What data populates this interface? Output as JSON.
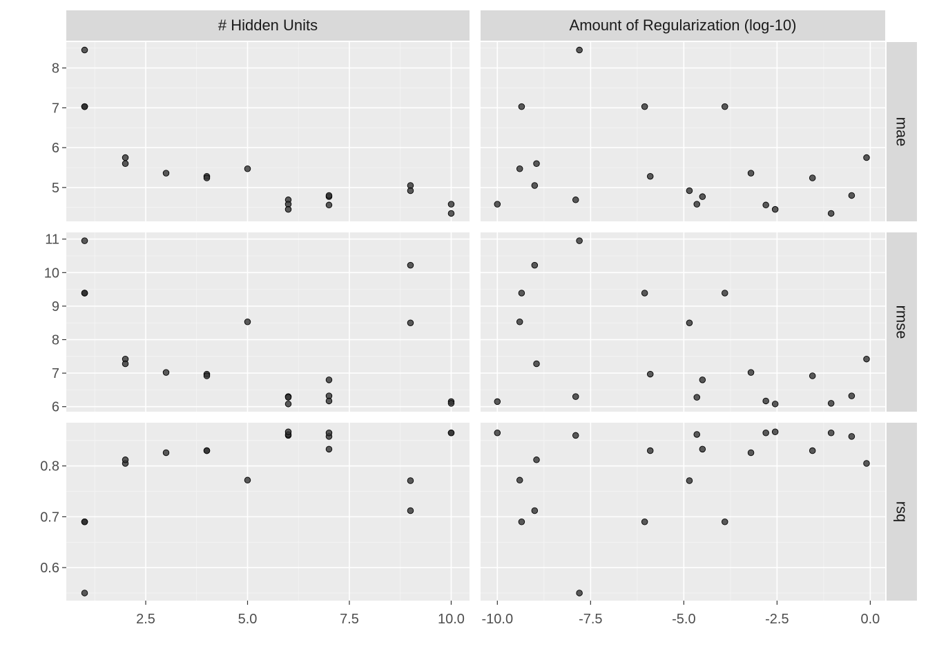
{
  "chart_data": {
    "type": "scatter",
    "layout": "facet_grid",
    "col_facets": [
      {
        "key": "hidden",
        "label": "# Hidden Units",
        "xlim": [
          0.55,
          10.45
        ],
        "xticks": [
          2.5,
          5.0,
          7.5,
          10.0
        ],
        "xtick_labels": [
          "2.5",
          "5.0",
          "7.5",
          "10.0"
        ]
      },
      {
        "key": "penalty",
        "label": "Amount of Regularization (log-10)",
        "xlim": [
          -10.45,
          0.4
        ],
        "xticks": [
          -10.0,
          -7.5,
          -5.0,
          -2.5,
          0.0
        ],
        "xtick_labels": [
          "-10.0",
          "-7.5",
          "-5.0",
          "-2.5",
          "0.0"
        ]
      }
    ],
    "row_facets": [
      {
        "key": "mae",
        "label": "mae",
        "ylim": [
          4.15,
          8.65
        ],
        "yticks": [
          5,
          6,
          7,
          8
        ],
        "ytick_labels": [
          "5",
          "6",
          "7",
          "8"
        ]
      },
      {
        "key": "rmse",
        "label": "rmse",
        "ylim": [
          5.85,
          11.2
        ],
        "yticks": [
          6,
          7,
          8,
          9,
          10,
          11
        ],
        "ytick_labels": [
          "6",
          "7",
          "8",
          "9",
          "10",
          "11"
        ]
      },
      {
        "key": "rsq",
        "label": "rsq",
        "ylim": [
          0.535,
          0.885
        ],
        "yticks": [
          0.6,
          0.7,
          0.8
        ],
        "ytick_labels": [
          "0.6",
          "0.7",
          "0.8"
        ]
      }
    ],
    "candidates": [
      {
        "hidden": 1,
        "penalty": -7.8,
        "mae": 8.45,
        "rmse": 10.95,
        "rsq": 0.55
      },
      {
        "hidden": 1,
        "penalty": -9.35,
        "mae": 7.03,
        "rmse": 9.39,
        "rsq": 0.69
      },
      {
        "hidden": 1,
        "penalty": -6.05,
        "mae": 7.03,
        "rmse": 9.39,
        "rsq": 0.69
      },
      {
        "hidden": 1,
        "penalty": -3.9,
        "mae": 7.03,
        "rmse": 9.39,
        "rsq": 0.69
      },
      {
        "hidden": 2,
        "penalty": -0.1,
        "mae": 5.75,
        "rmse": 7.42,
        "rsq": 0.805
      },
      {
        "hidden": 2,
        "penalty": -8.95,
        "mae": 5.6,
        "rmse": 7.28,
        "rsq": 0.812
      },
      {
        "hidden": 3,
        "penalty": -3.2,
        "mae": 5.36,
        "rmse": 7.02,
        "rsq": 0.826
      },
      {
        "hidden": 4,
        "penalty": -5.9,
        "mae": 5.28,
        "rmse": 6.97,
        "rsq": 0.83
      },
      {
        "hidden": 4,
        "penalty": -1.55,
        "mae": 5.24,
        "rmse": 6.92,
        "rsq": 0.83
      },
      {
        "hidden": 5,
        "penalty": -9.4,
        "mae": 5.47,
        "rmse": 8.53,
        "rsq": 0.772
      },
      {
        "hidden": 6,
        "penalty": -7.9,
        "mae": 4.69,
        "rmse": 6.3,
        "rsq": 0.86
      },
      {
        "hidden": 6,
        "penalty": -4.65,
        "mae": 4.58,
        "rmse": 6.28,
        "rsq": 0.862
      },
      {
        "hidden": 6,
        "penalty": -2.55,
        "mae": 4.45,
        "rmse": 6.08,
        "rsq": 0.867
      },
      {
        "hidden": 7,
        "penalty": -4.5,
        "mae": 4.77,
        "rmse": 6.8,
        "rsq": 0.833
      },
      {
        "hidden": 7,
        "penalty": -0.5,
        "mae": 4.8,
        "rmse": 6.32,
        "rsq": 0.858
      },
      {
        "hidden": 7,
        "penalty": -2.8,
        "mae": 4.56,
        "rmse": 6.17,
        "rsq": 0.865
      },
      {
        "hidden": 9,
        "penalty": -9.0,
        "mae": 5.05,
        "rmse": 10.22,
        "rsq": 0.712
      },
      {
        "hidden": 9,
        "penalty": -4.85,
        "mae": 4.92,
        "rmse": 8.5,
        "rsq": 0.771
      },
      {
        "hidden": 10,
        "penalty": -10.0,
        "mae": 4.58,
        "rmse": 6.15,
        "rsq": 0.865
      },
      {
        "hidden": 10,
        "penalty": -1.05,
        "mae": 4.35,
        "rmse": 6.1,
        "rsq": 0.865
      }
    ],
    "grid": true,
    "legend": "none"
  }
}
